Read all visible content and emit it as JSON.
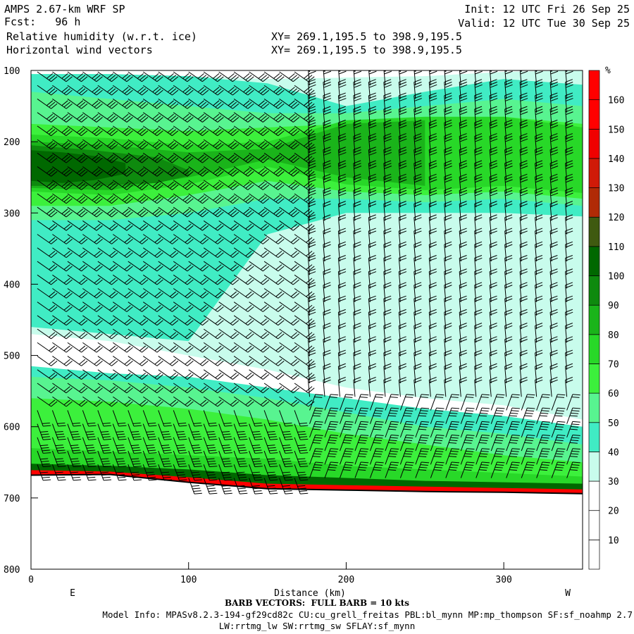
{
  "header": {
    "left_lines": [
      "AMPS 2.67-km WRF SP",
      "Fcst:   96 h",
      " Relative humidity (w.r.t. ice)",
      " Horizontal wind vectors"
    ],
    "init": "Init: 12 UTC Fri 26 Sep 25",
    "valid": "Valid: 12 UTC Tue 30 Sep 25",
    "xy1": "XY= 269.1,195.5 to 398.9,195.5",
    "xy2": "XY= 269.1,195.5 to 398.9,195.5"
  },
  "footer": {
    "barb_note": "BARB VECTORS:  FULL BARB = 10 kts",
    "model_info": "Model Info: MPASv8.2.3-194-gf29cd82c CU:cu_grell_freitas PBL:bl_mynn MP:mp_thompson SF:sf_noahmp 2.7",
    "model_info2": "LW:rrtmg_lw SW:rrtmg_sw SFLAY:sf_mynn"
  },
  "colors": {
    "rh_levels": [
      "#ffffff",
      "#ffffff",
      "#ffffff",
      "#c8fcec",
      "#40ecc4",
      "#58f490",
      "#3cf03c",
      "#28d828",
      "#1ab41a",
      "#0e8a0e",
      "#006800",
      "#3f5a10",
      "#b02a06",
      "#d01a08",
      "#f00000",
      "#ff0000",
      "#ff0000"
    ]
  },
  "chart_data": {
    "type": "heatmap",
    "description_free": true,
    "xlabel": "Distance (km)",
    "ylabel": "",
    "x_ticks": [
      "0",
      "100",
      "200",
      "300"
    ],
    "y_ticks": [
      "100",
      "200",
      "300",
      "400",
      "500",
      "600",
      "700",
      "800"
    ],
    "xlim": [
      0,
      350
    ],
    "ylim_hpa": [
      100,
      800
    ],
    "y_reversed": true,
    "x_end_labels": [
      "E",
      "W"
    ],
    "colorbar": {
      "unit": "%",
      "levels": [
        10,
        20,
        30,
        40,
        50,
        60,
        70,
        80,
        90,
        100,
        110,
        120,
        130,
        140,
        150,
        160
      ]
    },
    "terrain_hpa": [
      [
        0,
        668
      ],
      [
        50,
        667
      ],
      [
        100,
        678
      ],
      [
        150,
        687
      ],
      [
        200,
        689
      ],
      [
        250,
        691
      ],
      [
        300,
        692
      ],
      [
        350,
        694
      ]
    ],
    "rh_bands": [
      {
        "level": 20,
        "x": [
          0,
          350
        ],
        "top": [
          100,
          100
        ],
        "bot": [
          800,
          800
        ]
      },
      {
        "level": 30,
        "x": [
          0,
          50,
          100,
          150,
          200,
          250,
          300,
          350
        ],
        "top": [
          105,
          105,
          108,
          112,
          110,
          108,
          102,
          100
        ],
        "bot": [
          470,
          480,
          500,
          520,
          545,
          560,
          570,
          590
        ]
      },
      {
        "level": 40,
        "x": [
          0,
          50,
          100,
          150,
          200,
          250,
          300,
          350
        ],
        "top": [
          105,
          105,
          108,
          118,
          150,
          130,
          112,
          120
        ],
        "bot": [
          460,
          470,
          480,
          330,
          300,
          300,
          300,
          305
        ]
      },
      {
        "level": 55,
        "x": [
          0,
          50,
          100,
          150,
          200,
          250,
          300,
          350
        ],
        "top": [
          130,
          140,
          150,
          160,
          160,
          150,
          140,
          150
        ],
        "bot": [
          310,
          310,
          300,
          280,
          280,
          285,
          280,
          290
        ]
      },
      {
        "level": 65,
        "x": [
          0,
          50,
          100,
          150,
          200,
          250,
          300,
          350
        ],
        "top": [
          175,
          180,
          185,
          180,
          175,
          170,
          165,
          175
        ],
        "bot": [
          290,
          290,
          275,
          255,
          270,
          275,
          270,
          280
        ]
      },
      {
        "level": 75,
        "x": [
          0,
          50,
          100,
          150,
          200,
          250,
          300,
          350
        ],
        "top": [
          190,
          195,
          205,
          200,
          170,
          165,
          165,
          180
        ],
        "bot": [
          270,
          275,
          260,
          235,
          260,
          268,
          262,
          272
        ]
      },
      {
        "level": 85,
        "x": [
          0,
          50,
          100,
          150,
          200,
          250
        ],
        "top": [
          200,
          205,
          215,
          210,
          175,
          170
        ],
        "bot": [
          265,
          268,
          250,
          225,
          250,
          262
        ]
      },
      {
        "level": 95,
        "x": [
          0,
          40,
          80,
          100
        ],
        "top": [
          205,
          212,
          222,
          240
        ],
        "bot": [
          262,
          262,
          258,
          248
        ]
      },
      {
        "level": 105,
        "x": [
          0,
          20,
          40,
          60
        ],
        "top": [
          212,
          215,
          220,
          230
        ],
        "bot": [
          255,
          258,
          254,
          245
        ]
      },
      {
        "level": 40,
        "x": [
          0,
          50,
          100,
          150,
          200,
          250,
          300,
          350
        ],
        "top": [
          515,
          525,
          530,
          545,
          560,
          575,
          585,
          600
        ],
        "bot": [
          680,
          680,
          685,
          690,
          692,
          694,
          695,
          697
        ]
      },
      {
        "level": 55,
        "x": [
          0,
          50,
          100,
          150,
          200,
          250,
          300,
          350
        ],
        "top": [
          530,
          535,
          545,
          560,
          580,
          600,
          610,
          625
        ],
        "bot": [
          680,
          680,
          685,
          690,
          692,
          694,
          695,
          697
        ]
      },
      {
        "level": 65,
        "x": [
          0,
          50,
          100,
          150,
          200,
          250,
          300,
          350
        ],
        "top": [
          560,
          565,
          575,
          590,
          610,
          625,
          640,
          650
        ],
        "bot": [
          680,
          680,
          685,
          690,
          692,
          694,
          695,
          697
        ]
      },
      {
        "level": 75,
        "x": [
          0,
          50,
          100,
          150,
          200,
          250,
          300,
          350
        ],
        "top": [
          630,
          635,
          640,
          645,
          655,
          660,
          665,
          670
        ],
        "bot": [
          680,
          680,
          685,
          690,
          692,
          694,
          695,
          697
        ]
      },
      {
        "level": 105,
        "x": [
          0,
          50,
          100,
          150,
          200,
          250,
          300,
          350
        ],
        "top": [
          652,
          655,
          660,
          668,
          672,
          676,
          678,
          680
        ],
        "bot": [
          680,
          680,
          685,
          690,
          692,
          694,
          695,
          697
        ]
      },
      {
        "level": 150,
        "x": [
          0,
          50,
          100,
          150,
          200,
          250,
          300,
          350
        ],
        "top": [
          661,
          663,
          671,
          680,
          682,
          684,
          686,
          688
        ],
        "bot": [
          680,
          680,
          685,
          690,
          692,
          694,
          695,
          697
        ]
      }
    ]
  }
}
